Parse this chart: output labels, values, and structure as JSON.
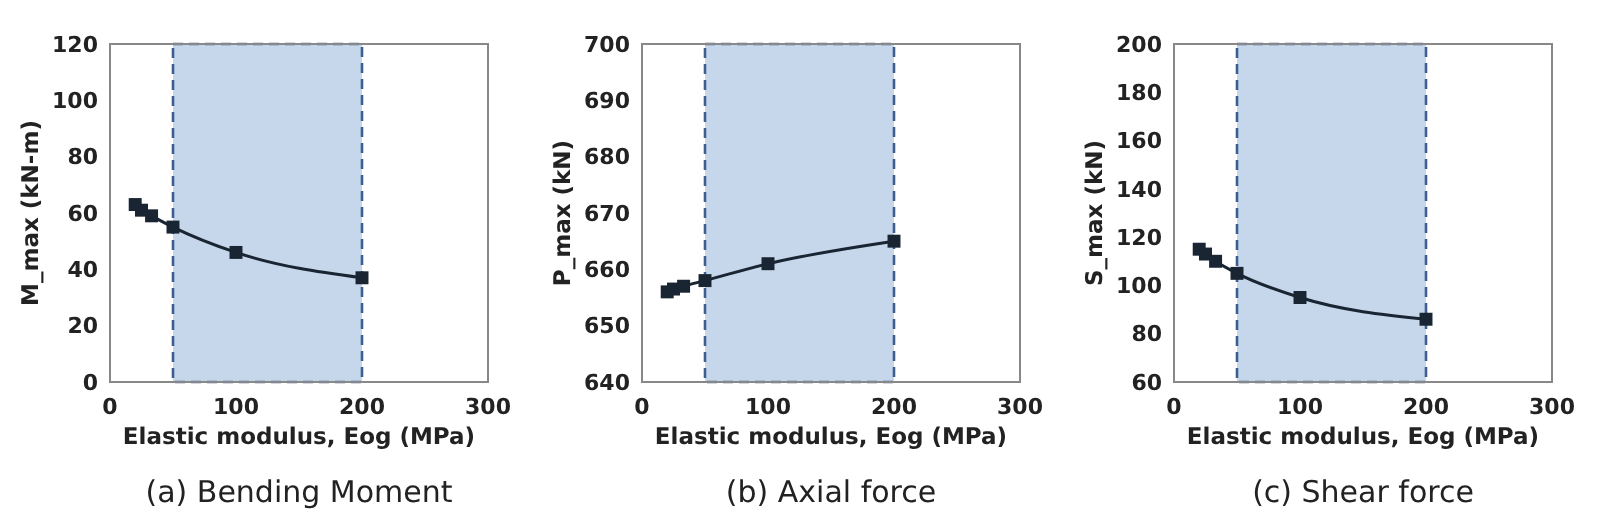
{
  "chart_data": [
    {
      "type": "line",
      "title": "(a) Bending Moment",
      "xlabel": "Elastic modulus, Eog (MPa)",
      "ylabel": "M_max (kN-m)",
      "x": [
        20,
        25,
        33,
        50,
        100,
        200
      ],
      "series": [
        {
          "color": "#1a2533",
          "values": [
            63,
            61,
            59,
            55,
            46,
            37
          ]
        }
      ],
      "xlim": [
        0,
        300
      ],
      "xticks": [
        0,
        100,
        200,
        300
      ],
      "ylim": [
        0,
        120
      ],
      "yticks": [
        0,
        20,
        40,
        60,
        80,
        100,
        120
      ],
      "bands": [
        {
          "axis": "x",
          "from": 50,
          "to": 200,
          "color": "#c7d7eb"
        }
      ],
      "marker": "square",
      "grid": false
    },
    {
      "type": "line",
      "title": "(b) Axial force",
      "xlabel": "Elastic modulus, Eog (MPa)",
      "ylabel": "P_max (kN)",
      "x": [
        20,
        25,
        33,
        50,
        100,
        200
      ],
      "series": [
        {
          "color": "#1a2533",
          "values": [
            656,
            656.5,
            657,
            658,
            661,
            665
          ]
        }
      ],
      "xlim": [
        0,
        300
      ],
      "xticks": [
        0,
        100,
        200,
        300
      ],
      "ylim": [
        640,
        700
      ],
      "yticks": [
        640,
        650,
        660,
        670,
        680,
        690,
        700
      ],
      "bands": [
        {
          "axis": "x",
          "from": 50,
          "to": 200,
          "color": "#c7d7eb"
        }
      ],
      "marker": "square",
      "grid": false
    },
    {
      "type": "line",
      "title": "(c) Shear force",
      "xlabel": "Elastic modulus, Eog (MPa)",
      "ylabel": "S_max (kN)",
      "x": [
        20,
        25,
        33,
        50,
        100,
        200
      ],
      "series": [
        {
          "color": "#1a2533",
          "values": [
            115,
            113,
            110,
            105,
            95,
            86
          ]
        }
      ],
      "xlim": [
        0,
        300
      ],
      "xticks": [
        0,
        100,
        200,
        300
      ],
      "ylim": [
        60,
        200
      ],
      "yticks": [
        60,
        80,
        100,
        120,
        140,
        160,
        180,
        200
      ],
      "bands": [
        {
          "axis": "x",
          "from": 50,
          "to": 200,
          "color": "#c7d7eb"
        }
      ],
      "marker": "square",
      "grid": false
    }
  ]
}
